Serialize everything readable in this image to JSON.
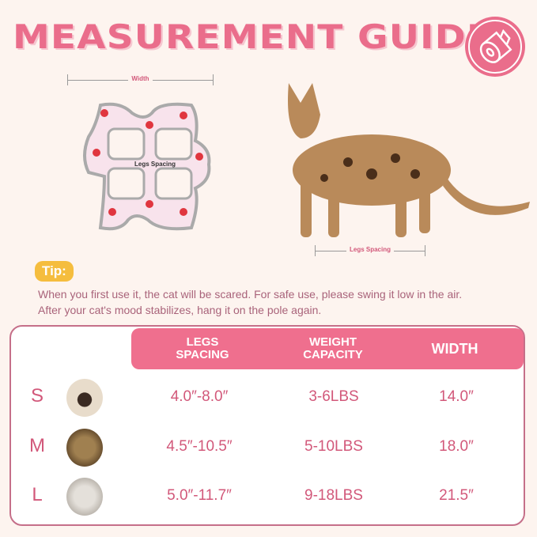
{
  "header": {
    "title": "MEASUREMENT GUIDE",
    "badge_icon": "measuring-tape-icon"
  },
  "garment": {
    "width_label": "Width",
    "legs_label": "Legs Spacing"
  },
  "cat_photo": {
    "legs_label": "Legs Spacing"
  },
  "tip": {
    "label": "Tip:",
    "text": "When you first use it, the cat will be scared. For safe use, please swing it low in the air. After your cat's mood stabilizes, hang it on the pole again."
  },
  "table": {
    "headers": [
      "LEGS SPACING",
      "WEIGHT CAPACITY",
      "WIDTH"
    ],
    "rows": [
      {
        "size": "S",
        "legs": "4.0″-8.0″",
        "weight": "3-6LBS",
        "width": "14.0″"
      },
      {
        "size": "M",
        "legs": "4.5″-10.5″",
        "weight": "5-10LBS",
        "width": "18.0″"
      },
      {
        "size": "L",
        "legs": "5.0″-11.7″",
        "weight": "9-18LBS",
        "width": "21.5″"
      }
    ]
  },
  "colors": {
    "accent": "#ea6d8b",
    "tip": "#f5bd3e",
    "background": "#fdf4ef"
  }
}
